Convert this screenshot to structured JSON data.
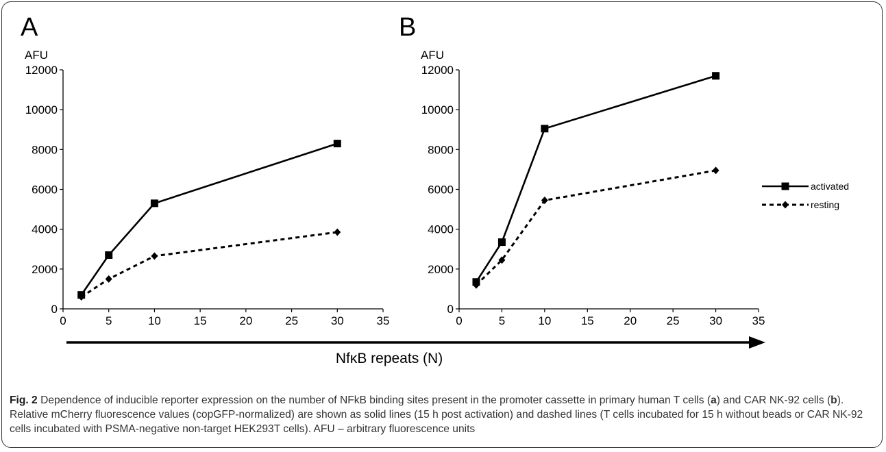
{
  "caption": {
    "fig_label": "Fig. 2",
    "text_1": " Dependence of inducible reporter expression on the number of NFkB binding sites present in the promoter cassette in primary human T cells (",
    "bold_a": "a",
    "text_2": ") and CAR NK-92 cells (",
    "bold_b": "b",
    "text_3": "). Relative mCherry fluorescence values (copGFP-normalized) are shown as solid lines (15 h post activation) and dashed lines (T cells incubated for 15 h without beads or CAR NK-92 cells incubated with PSMA-negative non-target HEK293T cells). AFU – arbitrary fluorescence units"
  },
  "arrow_label": "NfκB repeats (N)",
  "colors": {
    "line": "#000000",
    "frame": "#333333",
    "caption_text": "#333333"
  },
  "chart_data": [
    {
      "panel": "A",
      "type": "line",
      "ylabel": "AFU",
      "xlim": [
        0,
        35
      ],
      "ylim": [
        0,
        12000
      ],
      "xticks": [
        0,
        5,
        10,
        15,
        20,
        25,
        30,
        35
      ],
      "yticks": [
        0,
        2000,
        4000,
        6000,
        8000,
        10000,
        12000
      ],
      "grid": false,
      "series": [
        {
          "name": "activated",
          "style": "solid",
          "marker": "square",
          "x": [
            2,
            5,
            10,
            30
          ],
          "y": [
            700,
            2700,
            5300,
            8300
          ]
        },
        {
          "name": "resting",
          "style": "dashed",
          "marker": "diamond",
          "x": [
            2,
            5,
            10,
            30
          ],
          "y": [
            600,
            1500,
            2650,
            3850
          ]
        }
      ]
    },
    {
      "panel": "B",
      "type": "line",
      "ylabel": "AFU",
      "xlim": [
        0,
        35
      ],
      "ylim": [
        0,
        12000
      ],
      "xticks": [
        0,
        5,
        10,
        15,
        20,
        25,
        30,
        35
      ],
      "yticks": [
        0,
        2000,
        4000,
        6000,
        8000,
        10000,
        12000
      ],
      "grid": false,
      "legend": "right",
      "series": [
        {
          "name": "activated",
          "style": "solid",
          "marker": "square",
          "x": [
            2,
            5,
            10,
            30
          ],
          "y": [
            1350,
            3350,
            9050,
            11700
          ]
        },
        {
          "name": "resting",
          "style": "dashed",
          "marker": "diamond",
          "x": [
            2,
            5,
            10,
            30
          ],
          "y": [
            1200,
            2450,
            5450,
            6950
          ]
        }
      ]
    }
  ]
}
